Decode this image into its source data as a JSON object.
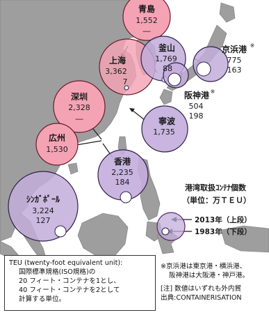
{
  "ports": [
    {
      "name": "青島",
      "v2013": "1,552",
      "v1983": "―"
    },
    {
      "name": "上海",
      "v2013": "3,362",
      "v1983": "7"
    },
    {
      "name": "釜山",
      "v2013": "1,769",
      "v1983": "88"
    },
    {
      "name": "京浜港",
      "name_mark": "※",
      "v2013": "775",
      "v1983": "163"
    },
    {
      "name": "阪神港",
      "name_mark": "※",
      "v2013": "504",
      "v1983": "198"
    },
    {
      "name": "深圳",
      "v2013": "2,328",
      "v1983": "―"
    },
    {
      "name": "寧波",
      "v2013": "1,735",
      "v1983": "―"
    },
    {
      "name": "広州",
      "v2013": "1,530",
      "v1983": "―"
    },
    {
      "name": "香港",
      "v2013": "2,235",
      "v1983": "184"
    },
    {
      "name": "ｼﾝｶﾞﾎﾟｰﾙ",
      "v2013": "3,224",
      "v1983": "127"
    }
  ],
  "legend": {
    "title_line1": "港湾取扱ｺﾝﾃﾅ個数",
    "title_line2": "（単位：万ＴＥＵ）",
    "row_2013": "2013年（上段）",
    "row_1983": "1983年（下段）"
  },
  "teu_box": {
    "line1": "TEU (twenty-foot equivalent unit):",
    "line2": "国際標準規格(ISO規格)の",
    "line3": "20 フィート・コンテナを1とし、",
    "line4": "40 フィート・コンテナを2として",
    "line5": "計算する単位。"
  },
  "notes": {
    "line1": "※京浜港は東京港・横浜港、",
    "line2": "阪神港は大阪港・神戸港。",
    "line3": "[注] 数値はいずれも外内貿",
    "line4": "出典:CONTAINERISATION"
  },
  "colors": {
    "sea": "#ffffff",
    "land": "#9e9e9e",
    "circle_2013_fill": "#f4a3b4",
    "circle_2013_stroke": "#6b1a2c",
    "circle_1983_fill": "#c3addb",
    "circle_1983_stroke": "#2d1f4a",
    "legend_ring": "#5a2a68"
  }
}
